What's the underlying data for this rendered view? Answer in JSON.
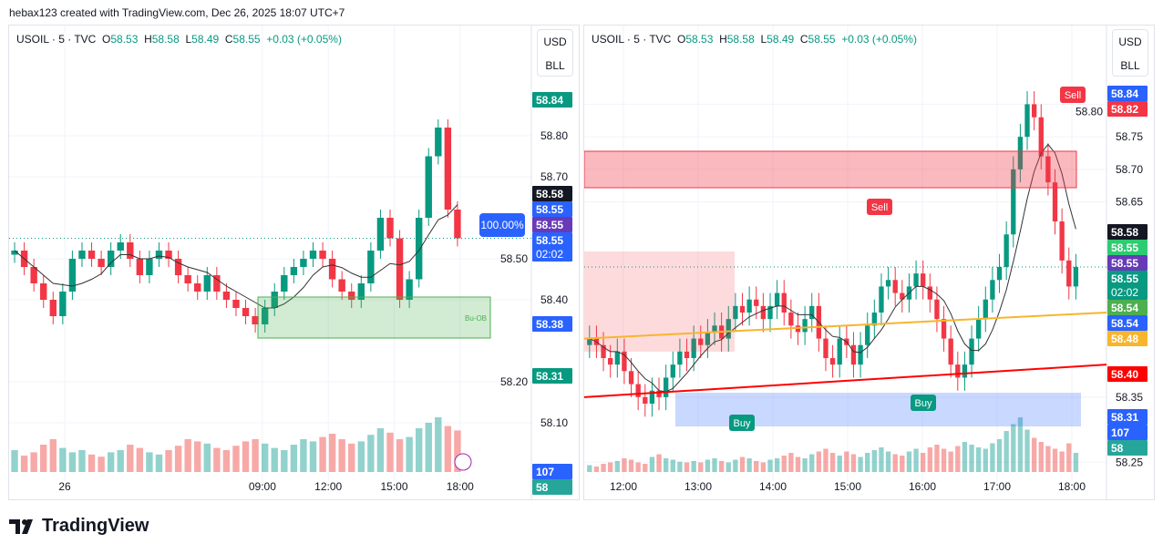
{
  "credit": "hebax123 created with TradingView.com, Dec 26, 2025 18:07 UTC+7",
  "brand": "TradingView",
  "legend": {
    "symbol": "USOIL · 5 · TVC",
    "o_label": "O",
    "o": "58.53",
    "h_label": "H",
    "h": "58.58",
    "l_label": "L",
    "l": "58.49",
    "c_label": "C",
    "c": "58.55",
    "change": "+0.03 (+0.05%)"
  },
  "unit": {
    "currency": "USD",
    "unit": "BLL"
  },
  "colors": {
    "up": "#089981",
    "down": "#f23645",
    "blue": "#2962ff",
    "purple": "#673ab7",
    "orange": "#ff9800",
    "yellow": "#f7b52c"
  },
  "chart_data": [
    {
      "type": "candlestick",
      "title": "USOIL · 5 · TVC (left)",
      "ylim": [
        57.98,
        58.98
      ],
      "y_ticks": [
        "58.80",
        "58.70",
        "58.50",
        "58.40",
        "58.20",
        "58.10"
      ],
      "x_ticks": [
        "26",
        "09:00",
        "12:00",
        "15:00",
        "18:00"
      ],
      "x_tick_hours": [
        0,
        9,
        12,
        15,
        18
      ],
      "hours_start": -2.5,
      "hours_end": 18.1,
      "closes": [
        58.52,
        58.48,
        58.44,
        58.4,
        58.36,
        58.42,
        58.5,
        58.52,
        58.5,
        58.48,
        58.52,
        58.54,
        58.5,
        58.46,
        58.5,
        58.52,
        58.5,
        58.46,
        58.44,
        58.42,
        58.46,
        58.42,
        58.4,
        58.38,
        58.36,
        58.34,
        58.38,
        58.42,
        58.46,
        58.48,
        58.5,
        58.52,
        58.5,
        58.45,
        58.42,
        58.4,
        58.44,
        58.52,
        58.6,
        58.55,
        58.4,
        58.45,
        58.6,
        58.75,
        58.82,
        58.62,
        58.55
      ],
      "volumes": [
        20,
        15,
        18,
        25,
        30,
        22,
        18,
        20,
        16,
        14,
        18,
        20,
        25,
        22,
        18,
        16,
        20,
        24,
        30,
        28,
        26,
        22,
        20,
        24,
        28,
        30,
        26,
        22,
        20,
        25,
        30,
        28,
        32,
        35,
        30,
        26,
        28,
        34,
        40,
        36,
        30,
        32,
        40,
        45,
        50,
        42,
        38
      ],
      "price_labels": [
        {
          "text": "58.84",
          "color": "#089981"
        },
        {
          "text": "58.58",
          "color": "#131722"
        },
        {
          "text": "58.55",
          "color": "#2962ff"
        },
        {
          "text": "58.55",
          "color": "#673ab7"
        },
        {
          "text": "58.55",
          "sub": "02:02",
          "color": "#2962ff"
        },
        {
          "text": "58.38",
          "color": "#2962ff"
        },
        {
          "text": "58.31",
          "color": "#089981"
        },
        {
          "text": "107",
          "color": "#2962ff"
        },
        {
          "text": "58",
          "color": "#26a69a"
        }
      ],
      "annotations": [
        "100.00%",
        "Bu-OB"
      ]
    },
    {
      "type": "candlestick",
      "title": "USOIL · 5 · TVC (right)",
      "ylim": [
        58.235,
        58.865
      ],
      "y_ticks": [
        "58.80",
        "58.75",
        "58.70",
        "58.65",
        "58.35",
        "58.25"
      ],
      "x_ticks": [
        "12:00",
        "13:00",
        "14:00",
        "15:00",
        "16:00",
        "17:00",
        "18:00"
      ],
      "x_tick_hours": [
        12,
        13,
        14,
        15,
        16,
        17,
        18
      ],
      "hours_start": 11.5,
      "hours_end": 18.1,
      "closes": [
        58.44,
        58.43,
        58.41,
        58.4,
        58.42,
        58.39,
        58.37,
        58.35,
        58.34,
        58.36,
        58.35,
        58.38,
        58.4,
        58.42,
        58.41,
        58.44,
        58.43,
        58.45,
        58.46,
        58.44,
        58.47,
        58.49,
        58.48,
        58.5,
        58.49,
        58.47,
        58.49,
        58.51,
        58.48,
        58.46,
        58.45,
        58.47,
        58.49,
        58.44,
        58.41,
        58.4,
        58.44,
        58.43,
        58.4,
        58.43,
        58.46,
        58.48,
        58.52,
        58.53,
        58.51,
        58.5,
        58.52,
        58.54,
        58.52,
        58.5,
        58.47,
        58.44,
        58.4,
        58.38,
        58.4,
        58.44,
        58.47,
        58.5,
        58.53,
        58.55,
        58.6,
        58.7,
        58.75,
        58.8,
        58.78,
        58.72,
        58.68,
        58.62,
        58.56,
        58.52,
        58.55
      ],
      "volumes": [
        10,
        8,
        12,
        14,
        16,
        20,
        18,
        14,
        12,
        22,
        26,
        20,
        18,
        15,
        14,
        16,
        14,
        18,
        20,
        16,
        14,
        18,
        22,
        20,
        16,
        14,
        18,
        20,
        24,
        28,
        22,
        20,
        26,
        30,
        34,
        28,
        24,
        30,
        26,
        22,
        28,
        32,
        36,
        30,
        26,
        24,
        30,
        34,
        28,
        36,
        40,
        34,
        30,
        38,
        44,
        40,
        36,
        34,
        42,
        48,
        60,
        70,
        80,
        62,
        50,
        44,
        38,
        34,
        30,
        42,
        28
      ],
      "price_labels": [
        {
          "text": "58.84",
          "color": "#2962ff"
        },
        {
          "text": "58.82",
          "color": "#f23645"
        },
        {
          "text": "58.58",
          "color": "#131722"
        },
        {
          "text": "58.55",
          "color": "#2ecc71"
        },
        {
          "text": "58.55",
          "color": "#673ab7"
        },
        {
          "text": "58.55",
          "sub": "02:02",
          "color": "#089981"
        },
        {
          "text": "58.54",
          "color": "#4caf50"
        },
        {
          "text": "58.54",
          "color": "#2962ff"
        },
        {
          "text": "58.48",
          "color": "#f7b52c"
        },
        {
          "text": "58.40",
          "color": "#ff0000"
        },
        {
          "text": "58.31",
          "color": "#2962ff"
        },
        {
          "text": "107",
          "color": "#2962ff"
        },
        {
          "text": "58",
          "color": "#26a69a"
        }
      ],
      "annotations": [
        "Sell",
        "Sell",
        "Buy",
        "Buy"
      ]
    }
  ]
}
